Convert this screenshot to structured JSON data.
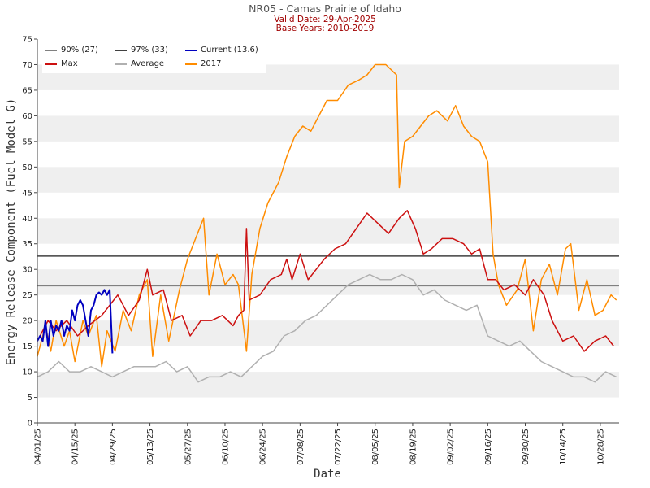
{
  "title": "NR05 - Camas Prairie of Idaho",
  "subtitle_1": "Valid Date: 29-Apr-2025",
  "subtitle_2": "Base Years: 2010-2019",
  "colors": {
    "p90": "#808080",
    "p97": "#404040",
    "current": "#0000c0",
    "max": "#cc1010",
    "average": "#b0b0b0",
    "y2017": "#ff8c00",
    "band": "#efefef",
    "title": "#555555",
    "subtitle": "#a00000"
  },
  "chart_data": {
    "type": "line",
    "xlabel": "Date",
    "ylabel": "Energy Release Component (Fuel Model G)",
    "ylim": [
      0,
      75
    ],
    "yticks": [
      0,
      5,
      10,
      15,
      20,
      25,
      30,
      35,
      40,
      45,
      50,
      55,
      60,
      65,
      70,
      75
    ],
    "xlim": [
      "2025-04-01",
      "2025-11-04"
    ],
    "xtick_labels": [
      "04/01/25",
      "04/15/25",
      "04/29/25",
      "05/13/25",
      "05/27/25",
      "06/10/25",
      "06/24/25",
      "07/08/25",
      "07/22/25",
      "08/05/25",
      "08/19/25",
      "09/02/25",
      "09/16/25",
      "09/30/25",
      "10/14/25",
      "10/28/25"
    ],
    "grid": "alternating horizontal bands",
    "legend_position": "top-left",
    "legend_entries": [
      {
        "label": "90% (27)",
        "key": "p90"
      },
      {
        "label": "97% (33)",
        "key": "p97"
      },
      {
        "label": "Current (13.6)",
        "key": "current"
      },
      {
        "label": "Max",
        "key": "max"
      },
      {
        "label": "Average",
        "key": "average"
      },
      {
        "label": "2017",
        "key": "y2017"
      }
    ],
    "thresholds": [
      {
        "name": "90% (27)",
        "value": 26.8
      },
      {
        "name": "97% (33)",
        "value": 32.6
      }
    ],
    "series": [
      {
        "name": "Current (13.6)",
        "key": "current",
        "points": [
          [
            "2025-04-01",
            16
          ],
          [
            "2025-04-02",
            17
          ],
          [
            "2025-04-03",
            16
          ],
          [
            "2025-04-04",
            20
          ],
          [
            "2025-04-05",
            15
          ],
          [
            "2025-04-06",
            20
          ],
          [
            "2025-04-07",
            17
          ],
          [
            "2025-04-08",
            19
          ],
          [
            "2025-04-09",
            18
          ],
          [
            "2025-04-10",
            20
          ],
          [
            "2025-04-11",
            17
          ],
          [
            "2025-04-12",
            19
          ],
          [
            "2025-04-13",
            18
          ],
          [
            "2025-04-14",
            22
          ],
          [
            "2025-04-15",
            20
          ],
          [
            "2025-04-16",
            23
          ],
          [
            "2025-04-17",
            24
          ],
          [
            "2025-04-18",
            23
          ],
          [
            "2025-04-19",
            20
          ],
          [
            "2025-04-20",
            17
          ],
          [
            "2025-04-21",
            22
          ],
          [
            "2025-04-22",
            23
          ],
          [
            "2025-04-23",
            25
          ],
          [
            "2025-04-24",
            25.5
          ],
          [
            "2025-04-25",
            25
          ],
          [
            "2025-04-26",
            26
          ],
          [
            "2025-04-27",
            25
          ],
          [
            "2025-04-28",
            26
          ],
          [
            "2025-04-29",
            13.6
          ]
        ]
      },
      {
        "name": "Max",
        "key": "max",
        "points": [
          [
            "2025-04-01",
            16
          ],
          [
            "2025-04-05",
            20
          ],
          [
            "2025-04-08",
            18
          ],
          [
            "2025-04-12",
            20
          ],
          [
            "2025-04-16",
            17
          ],
          [
            "2025-04-20",
            19
          ],
          [
            "2025-04-25",
            21
          ],
          [
            "2025-05-01",
            25
          ],
          [
            "2025-05-05",
            21
          ],
          [
            "2025-05-09",
            24
          ],
          [
            "2025-05-12",
            30
          ],
          [
            "2025-05-14",
            25
          ],
          [
            "2025-05-18",
            26
          ],
          [
            "2025-05-21",
            20
          ],
          [
            "2025-05-25",
            21
          ],
          [
            "2025-05-28",
            17
          ],
          [
            "2025-06-01",
            20
          ],
          [
            "2025-06-05",
            20
          ],
          [
            "2025-06-09",
            21
          ],
          [
            "2025-06-13",
            19
          ],
          [
            "2025-06-15",
            21
          ],
          [
            "2025-06-17",
            22
          ],
          [
            "2025-06-18",
            38
          ],
          [
            "2025-06-19",
            24
          ],
          [
            "2025-06-23",
            25
          ],
          [
            "2025-06-27",
            28
          ],
          [
            "2025-07-01",
            29
          ],
          [
            "2025-07-03",
            32
          ],
          [
            "2025-07-05",
            28
          ],
          [
            "2025-07-08",
            33
          ],
          [
            "2025-07-11",
            28
          ],
          [
            "2025-07-14",
            30
          ],
          [
            "2025-07-17",
            32
          ],
          [
            "2025-07-21",
            34
          ],
          [
            "2025-07-25",
            35
          ],
          [
            "2025-07-29",
            38
          ],
          [
            "2025-08-02",
            41
          ],
          [
            "2025-08-06",
            39
          ],
          [
            "2025-08-10",
            37
          ],
          [
            "2025-08-14",
            40
          ],
          [
            "2025-08-17",
            41.5
          ],
          [
            "2025-08-20",
            38
          ],
          [
            "2025-08-23",
            33
          ],
          [
            "2025-08-26",
            34
          ],
          [
            "2025-08-30",
            36
          ],
          [
            "2025-09-03",
            36
          ],
          [
            "2025-09-07",
            35
          ],
          [
            "2025-09-10",
            33
          ],
          [
            "2025-09-13",
            34
          ],
          [
            "2025-09-16",
            28
          ],
          [
            "2025-09-19",
            28
          ],
          [
            "2025-09-22",
            26
          ],
          [
            "2025-09-26",
            27
          ],
          [
            "2025-09-30",
            25
          ],
          [
            "2025-10-03",
            28
          ],
          [
            "2025-10-07",
            25
          ],
          [
            "2025-10-10",
            20
          ],
          [
            "2025-10-14",
            16
          ],
          [
            "2025-10-18",
            17
          ],
          [
            "2025-10-22",
            14
          ],
          [
            "2025-10-26",
            16
          ],
          [
            "2025-10-30",
            17
          ],
          [
            "2025-11-02",
            15
          ]
        ]
      },
      {
        "name": "Average",
        "key": "average",
        "points": [
          [
            "2025-04-01",
            9
          ],
          [
            "2025-04-05",
            10
          ],
          [
            "2025-04-09",
            12
          ],
          [
            "2025-04-13",
            10
          ],
          [
            "2025-04-17",
            10
          ],
          [
            "2025-04-21",
            11
          ],
          [
            "2025-04-25",
            10
          ],
          [
            "2025-04-29",
            9
          ],
          [
            "2025-05-03",
            10
          ],
          [
            "2025-05-07",
            11
          ],
          [
            "2025-05-11",
            11
          ],
          [
            "2025-05-15",
            11
          ],
          [
            "2025-05-19",
            12
          ],
          [
            "2025-05-23",
            10
          ],
          [
            "2025-05-27",
            11
          ],
          [
            "2025-05-31",
            8
          ],
          [
            "2025-06-04",
            9
          ],
          [
            "2025-06-08",
            9
          ],
          [
            "2025-06-12",
            10
          ],
          [
            "2025-06-16",
            9
          ],
          [
            "2025-06-20",
            11
          ],
          [
            "2025-06-24",
            13
          ],
          [
            "2025-06-28",
            14
          ],
          [
            "2025-07-02",
            17
          ],
          [
            "2025-07-06",
            18
          ],
          [
            "2025-07-10",
            20
          ],
          [
            "2025-07-14",
            21
          ],
          [
            "2025-07-18",
            23
          ],
          [
            "2025-07-22",
            25
          ],
          [
            "2025-07-26",
            27
          ],
          [
            "2025-07-30",
            28
          ],
          [
            "2025-08-03",
            29
          ],
          [
            "2025-08-07",
            28
          ],
          [
            "2025-08-11",
            28
          ],
          [
            "2025-08-15",
            29
          ],
          [
            "2025-08-19",
            28
          ],
          [
            "2025-08-23",
            25
          ],
          [
            "2025-08-27",
            26
          ],
          [
            "2025-08-31",
            24
          ],
          [
            "2025-09-04",
            23
          ],
          [
            "2025-09-08",
            22
          ],
          [
            "2025-09-12",
            23
          ],
          [
            "2025-09-16",
            17
          ],
          [
            "2025-09-20",
            16
          ],
          [
            "2025-09-24",
            15
          ],
          [
            "2025-09-28",
            16
          ],
          [
            "2025-10-02",
            14
          ],
          [
            "2025-10-06",
            12
          ],
          [
            "2025-10-10",
            11
          ],
          [
            "2025-10-14",
            10
          ],
          [
            "2025-10-18",
            9
          ],
          [
            "2025-10-22",
            9
          ],
          [
            "2025-10-26",
            8
          ],
          [
            "2025-10-30",
            10
          ],
          [
            "2025-11-03",
            9
          ]
        ]
      },
      {
        "name": "2017",
        "key": "y2017",
        "points": [
          [
            "2025-04-01",
            13
          ],
          [
            "2025-04-04",
            19
          ],
          [
            "2025-04-06",
            14
          ],
          [
            "2025-04-08",
            20
          ],
          [
            "2025-04-11",
            15
          ],
          [
            "2025-04-13",
            18
          ],
          [
            "2025-04-15",
            12
          ],
          [
            "2025-04-18",
            20
          ],
          [
            "2025-04-20",
            17
          ],
          [
            "2025-04-23",
            21
          ],
          [
            "2025-04-25",
            11
          ],
          [
            "2025-04-27",
            18
          ],
          [
            "2025-04-30",
            14
          ],
          [
            "2025-05-03",
            22
          ],
          [
            "2025-05-06",
            18
          ],
          [
            "2025-05-09",
            25
          ],
          [
            "2025-05-12",
            28
          ],
          [
            "2025-05-14",
            13
          ],
          [
            "2025-05-17",
            25
          ],
          [
            "2025-05-20",
            16
          ],
          [
            "2025-05-24",
            26
          ],
          [
            "2025-05-27",
            32
          ],
          [
            "2025-05-30",
            36
          ],
          [
            "2025-06-02",
            40
          ],
          [
            "2025-06-04",
            25
          ],
          [
            "2025-06-07",
            33
          ],
          [
            "2025-06-10",
            27
          ],
          [
            "2025-06-13",
            29
          ],
          [
            "2025-06-15",
            27
          ],
          [
            "2025-06-18",
            14
          ],
          [
            "2025-06-20",
            29
          ],
          [
            "2025-06-23",
            38
          ],
          [
            "2025-06-26",
            43
          ],
          [
            "2025-06-30",
            47
          ],
          [
            "2025-07-03",
            52
          ],
          [
            "2025-07-06",
            56
          ],
          [
            "2025-07-09",
            58
          ],
          [
            "2025-07-12",
            57
          ],
          [
            "2025-07-15",
            60
          ],
          [
            "2025-07-18",
            63
          ],
          [
            "2025-07-22",
            63
          ],
          [
            "2025-07-26",
            66
          ],
          [
            "2025-07-30",
            67
          ],
          [
            "2025-08-02",
            68
          ],
          [
            "2025-08-05",
            70
          ],
          [
            "2025-08-09",
            70
          ],
          [
            "2025-08-13",
            68
          ],
          [
            "2025-08-14",
            46
          ],
          [
            "2025-08-16",
            55
          ],
          [
            "2025-08-19",
            56
          ],
          [
            "2025-08-22",
            58
          ],
          [
            "2025-08-25",
            60
          ],
          [
            "2025-08-28",
            61
          ],
          [
            "2025-09-01",
            59
          ],
          [
            "2025-09-04",
            62
          ],
          [
            "2025-09-07",
            58
          ],
          [
            "2025-09-10",
            56
          ],
          [
            "2025-09-13",
            55
          ],
          [
            "2025-09-16",
            51
          ],
          [
            "2025-09-18",
            33
          ],
          [
            "2025-09-20",
            27
          ],
          [
            "2025-09-23",
            23
          ],
          [
            "2025-09-27",
            26
          ],
          [
            "2025-09-30",
            32
          ],
          [
            "2025-10-03",
            18
          ],
          [
            "2025-10-06",
            28
          ],
          [
            "2025-10-09",
            31
          ],
          [
            "2025-10-12",
            25
          ],
          [
            "2025-10-15",
            34
          ],
          [
            "2025-10-17",
            35
          ],
          [
            "2025-10-20",
            22
          ],
          [
            "2025-10-23",
            28
          ],
          [
            "2025-10-26",
            21
          ],
          [
            "2025-10-29",
            22
          ],
          [
            "2025-11-01",
            25
          ],
          [
            "2025-11-03",
            24
          ]
        ]
      }
    ]
  }
}
